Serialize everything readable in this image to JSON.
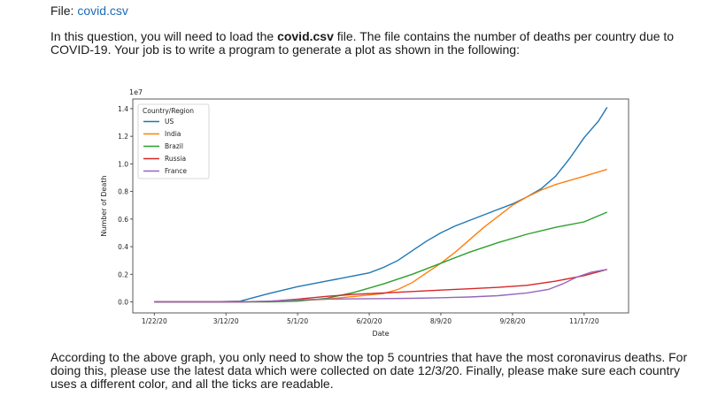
{
  "file": {
    "label": "File:",
    "link": "covid.csv"
  },
  "intro": {
    "p1": "In this question, you will need to load the ",
    "bold": "covid.csv",
    "p2": " file. The file contains the number of deaths per country due to COVID-19. Your job is to write a program to generate a plot as shown in the following:"
  },
  "outro": "According to the above graph, you only need to show the top 5 countries that have the most coronavirus deaths. For doing this, please use the latest data which were collected on date 12/3/20. Finally, please make sure each country uses a different color, and all the ticks are readable.",
  "chart_data": {
    "type": "line",
    "xlabel": "Date",
    "ylabel": "Number of Death",
    "scale_label": "1e7",
    "legend_title": "Country/Region",
    "legend_position": "top-left",
    "grid": false,
    "x_ticks": [
      "1/22/20",
      "3/12/20",
      "5/1/20",
      "6/20/20",
      "8/9/20",
      "9/28/20",
      "11/17/20"
    ],
    "x_tick_days": [
      0,
      50,
      100,
      150,
      200,
      250,
      300
    ],
    "xlim_days": [
      -15,
      331
    ],
    "y_ticks": [
      "0.0",
      "0.2",
      "0.4",
      "0.6",
      "0.8",
      "1.0",
      "1.2",
      "1.4"
    ],
    "ylim": [
      -0.08,
      1.47
    ],
    "series": [
      {
        "name": "US",
        "color": "#1f77b4",
        "points": [
          [
            0,
            0
          ],
          [
            40,
            0
          ],
          [
            60,
            0.005
          ],
          [
            80,
            0.06
          ],
          [
            100,
            0.11
          ],
          [
            120,
            0.15
          ],
          [
            140,
            0.19
          ],
          [
            150,
            0.21
          ],
          [
            160,
            0.25
          ],
          [
            170,
            0.3
          ],
          [
            180,
            0.37
          ],
          [
            190,
            0.44
          ],
          [
            200,
            0.5
          ],
          [
            210,
            0.55
          ],
          [
            220,
            0.59
          ],
          [
            230,
            0.63
          ],
          [
            240,
            0.67
          ],
          [
            250,
            0.71
          ],
          [
            260,
            0.76
          ],
          [
            270,
            0.82
          ],
          [
            280,
            0.91
          ],
          [
            290,
            1.04
          ],
          [
            300,
            1.19
          ],
          [
            310,
            1.31
          ],
          [
            316,
            1.41
          ]
        ]
      },
      {
        "name": "India",
        "color": "#ff7f0e",
        "points": [
          [
            0,
            0
          ],
          [
            60,
            0
          ],
          [
            80,
            0.002
          ],
          [
            100,
            0.008
          ],
          [
            120,
            0.02
          ],
          [
            140,
            0.04
          ],
          [
            160,
            0.06
          ],
          [
            170,
            0.09
          ],
          [
            180,
            0.14
          ],
          [
            190,
            0.21
          ],
          [
            200,
            0.28
          ],
          [
            210,
            0.36
          ],
          [
            220,
            0.45
          ],
          [
            230,
            0.54
          ],
          [
            240,
            0.62
          ],
          [
            250,
            0.7
          ],
          [
            260,
            0.76
          ],
          [
            270,
            0.81
          ],
          [
            280,
            0.85
          ],
          [
            290,
            0.88
          ],
          [
            300,
            0.91
          ],
          [
            316,
            0.96
          ]
        ]
      },
      {
        "name": "Brazil",
        "color": "#2ca02c",
        "points": [
          [
            0,
            0
          ],
          [
            80,
            0
          ],
          [
            100,
            0.005
          ],
          [
            120,
            0.025
          ],
          [
            140,
            0.07
          ],
          [
            160,
            0.13
          ],
          [
            180,
            0.2
          ],
          [
            200,
            0.28
          ],
          [
            220,
            0.36
          ],
          [
            240,
            0.43
          ],
          [
            260,
            0.49
          ],
          [
            280,
            0.54
          ],
          [
            300,
            0.58
          ],
          [
            316,
            0.65
          ]
        ]
      },
      {
        "name": "Russia",
        "color": "#d62728",
        "points": [
          [
            0,
            0
          ],
          [
            60,
            0
          ],
          [
            80,
            0.004
          ],
          [
            100,
            0.02
          ],
          [
            120,
            0.04
          ],
          [
            140,
            0.055
          ],
          [
            160,
            0.065
          ],
          [
            180,
            0.075
          ],
          [
            200,
            0.085
          ],
          [
            220,
            0.095
          ],
          [
            240,
            0.105
          ],
          [
            260,
            0.12
          ],
          [
            280,
            0.15
          ],
          [
            300,
            0.19
          ],
          [
            316,
            0.235
          ]
        ]
      },
      {
        "name": "France",
        "color": "#9467bd",
        "points": [
          [
            0,
            0
          ],
          [
            60,
            0
          ],
          [
            80,
            0.005
          ],
          [
            100,
            0.015
          ],
          [
            120,
            0.02
          ],
          [
            140,
            0.022
          ],
          [
            160,
            0.024
          ],
          [
            180,
            0.026
          ],
          [
            200,
            0.03
          ],
          [
            220,
            0.035
          ],
          [
            240,
            0.045
          ],
          [
            260,
            0.065
          ],
          [
            275,
            0.09
          ],
          [
            285,
            0.13
          ],
          [
            295,
            0.18
          ],
          [
            305,
            0.215
          ],
          [
            316,
            0.235
          ]
        ]
      }
    ]
  }
}
